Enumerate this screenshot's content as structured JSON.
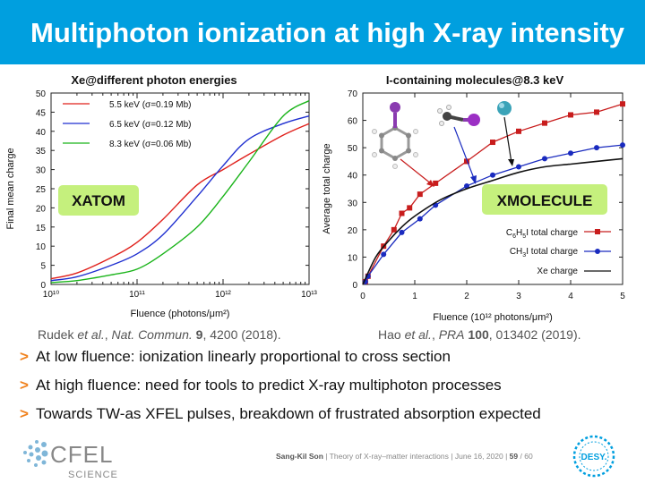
{
  "slide": {
    "title": "Multiphoton ionization at high X-ray intensity"
  },
  "chart_data": [
    {
      "type": "line",
      "title": "Xe@different photon energies",
      "xlabel": "Fluence (photons/μm²)",
      "ylabel": "Final mean charge",
      "xscale": "log",
      "xlim": [
        10000000000.0,
        10000000000000.0
      ],
      "ylim": [
        0,
        50
      ],
      "xticks": [
        "10¹⁰",
        "10¹¹",
        "10¹²",
        "10¹³"
      ],
      "yticks": [
        0,
        5,
        10,
        15,
        20,
        25,
        30,
        35,
        40,
        45,
        50
      ],
      "legend_placement": "top-left",
      "annotation": "XATOM",
      "series": [
        {
          "name": "5.5 keV (σ=0.19 Mb)",
          "color": "#e0201b",
          "x": [
            10000000000.0,
            20000000000.0,
            50000000000.0,
            100000000000.0,
            200000000000.0,
            500000000000.0,
            1000000000000.0,
            2000000000000.0,
            5000000000000.0,
            10000000000000.0
          ],
          "y": [
            1.5,
            3,
            7,
            11,
            17,
            26,
            30,
            34,
            39,
            42
          ]
        },
        {
          "name": "6.5 keV (σ=0.12 Mb)",
          "color": "#1f2fd0",
          "x": [
            10000000000.0,
            20000000000.0,
            50000000000.0,
            100000000000.0,
            200000000000.0,
            500000000000.0,
            1000000000000.0,
            2000000000000.0,
            5000000000000.0,
            10000000000000.0
          ],
          "y": [
            1,
            2,
            5,
            8,
            13,
            23,
            31,
            38,
            42,
            44
          ]
        },
        {
          "name": "8.3 keV (σ=0.06 Mb)",
          "color": "#1ab41a",
          "x": [
            10000000000.0,
            20000000000.0,
            50000000000.0,
            100000000000.0,
            200000000000.0,
            500000000000.0,
            1000000000000.0,
            2000000000000.0,
            5000000000000.0,
            10000000000000.0
          ],
          "y": [
            0.5,
            1,
            2.5,
            4,
            8,
            15,
            23,
            32,
            44,
            48
          ]
        }
      ]
    },
    {
      "type": "line",
      "title": "I-containing molecules@8.3 keV",
      "xlabel": "Fluence (10¹² photons/μm²)",
      "ylabel": "Average total charge",
      "xlim": [
        0,
        5
      ],
      "ylim": [
        0,
        70
      ],
      "xticks": [
        0,
        1,
        2,
        3,
        4,
        5
      ],
      "yticks": [
        0,
        10,
        20,
        30,
        40,
        50,
        60,
        70
      ],
      "legend_placement": "bottom-right",
      "annotation": "XMOLECULE",
      "series": [
        {
          "name": "C6H5I total charge",
          "color": "#c81d1d",
          "marker": "square",
          "x": [
            0.05,
            0.1,
            0.4,
            0.6,
            0.75,
            0.9,
            1.1,
            1.4,
            2.0,
            2.5,
            3.0,
            3.5,
            4.0,
            4.5,
            5.0
          ],
          "y": [
            1,
            3,
            14,
            20,
            26,
            28,
            33,
            37,
            45,
            52,
            56,
            59,
            62,
            63,
            66
          ]
        },
        {
          "name": "CH3I total charge",
          "color": "#1a2bbf",
          "marker": "circle",
          "x": [
            0.05,
            0.1,
            0.4,
            0.75,
            1.1,
            1.4,
            2.0,
            2.5,
            3.0,
            3.5,
            4.0,
            4.5,
            5.0
          ],
          "y": [
            1,
            3,
            11,
            19,
            24,
            29,
            36,
            40,
            43,
            46,
            48,
            50,
            51
          ]
        },
        {
          "name": "Xe charge",
          "color": "#111111",
          "marker": "dot",
          "x": [
            0,
            0.25,
            0.5,
            0.75,
            1.0,
            1.5,
            2.0,
            2.5,
            3.0,
            3.5,
            4.0,
            4.5,
            5.0
          ],
          "y": [
            0,
            10,
            16,
            21,
            25,
            31,
            35,
            38,
            41,
            43,
            44,
            45,
            46
          ]
        }
      ]
    }
  ],
  "citations": {
    "left": {
      "authors": "Rudek ",
      "etal": "et al.",
      "sep": ", ",
      "journal": "Nat. Commun.",
      "space": " ",
      "volume": "9",
      "rest": ", 4200 (2018)."
    },
    "right": {
      "authors": "Hao ",
      "etal": "et al.",
      "sep": ", ",
      "journal": "PRA",
      "space": " ",
      "volume": "100",
      "rest": ", 013402 (2019)."
    }
  },
  "bullets": [
    {
      "mark": ">",
      "text": "At low fluence: ionization linearly proportional to cross section"
    },
    {
      "mark": ">",
      "text": "At high fluence: need for tools to predict X-ray multiphoton processes"
    },
    {
      "mark": ">",
      "text": "Towards TW-as XFEL pulses, breakdown of frustrated absorption expected"
    }
  ],
  "footer": {
    "author": "Sang-Kil Son",
    "sep": "  |  ",
    "talk": "Theory of X-ray–matter interactions",
    "date": "June 16, 2020",
    "page": "59",
    "total": "/ 60"
  },
  "logos": {
    "cfel_name": "CFEL",
    "cfel_sub": "SCIENCE",
    "desy_name": "DESY."
  }
}
